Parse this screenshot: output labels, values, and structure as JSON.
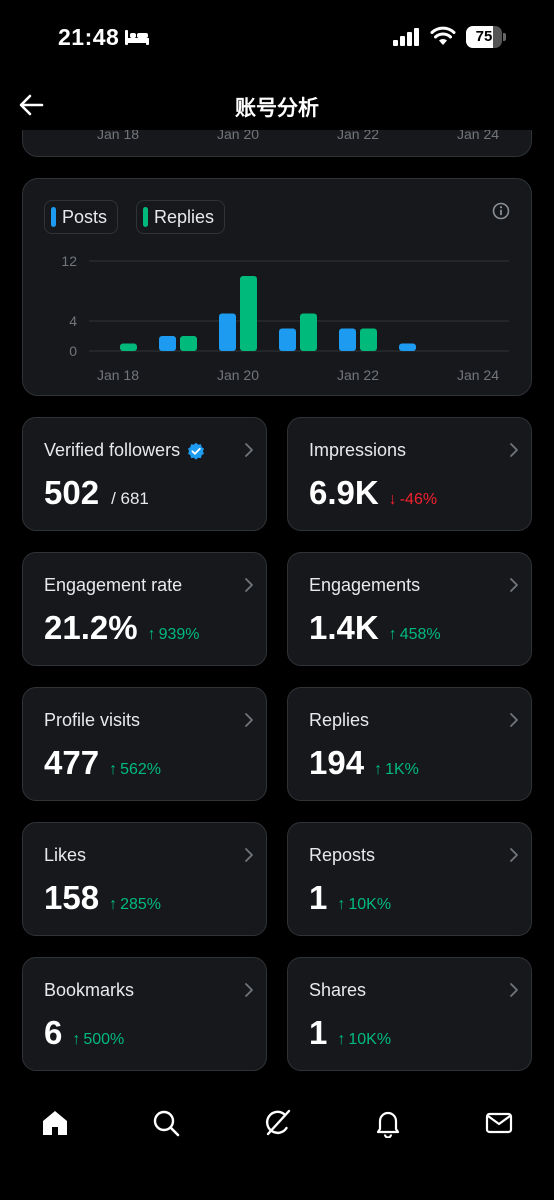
{
  "status_bar": {
    "time": "21:48",
    "battery": "75",
    "battery_level": 0.75,
    "icons": [
      "bed-icon",
      "signal-icon",
      "wifi-icon",
      "battery-icon"
    ]
  },
  "header": {
    "title": "账号分析",
    "back_icon": "back-arrow-icon"
  },
  "top_card": {
    "ticks": [
      "Jan 18",
      "Jan 20",
      "Jan 22",
      "Jan 24"
    ]
  },
  "chart_data": {
    "type": "bar",
    "legend": [
      {
        "name": "Posts",
        "color": "#1d9bf0"
      },
      {
        "name": "Replies",
        "color": "#00ba7c"
      }
    ],
    "categories": [
      "Jan 18",
      "Jan 19",
      "Jan 20",
      "Jan 21",
      "Jan 22",
      "Jan 23",
      "Jan 24"
    ],
    "series": [
      {
        "name": "Posts",
        "color": "#1d9bf0",
        "values": [
          0,
          2,
          5,
          3,
          3,
          1,
          0
        ]
      },
      {
        "name": "Replies",
        "color": "#00ba7c",
        "values": [
          1,
          2,
          10,
          5,
          3,
          0,
          0
        ]
      }
    ],
    "y_ticks": [
      "12",
      "4",
      "0"
    ],
    "y_tick_values": [
      12,
      4,
      0
    ],
    "x_tick_labels": [
      "Jan 18",
      "Jan 20",
      "Jan 22",
      "Jan 24"
    ],
    "ylim": [
      0,
      12
    ],
    "grid": true,
    "legend_placement": "top-left"
  },
  "stats": [
    {
      "label": "Verified followers",
      "value": "502",
      "sub": "/ 681",
      "change": "",
      "direction": "",
      "verified": true
    },
    {
      "label": "Impressions",
      "value": "6.9K",
      "sub": "",
      "change": "-46%",
      "direction": "down",
      "verified": false
    },
    {
      "label": "Engagement rate",
      "value": "21.2%",
      "sub": "",
      "change": "939%",
      "direction": "up",
      "verified": false
    },
    {
      "label": "Engagements",
      "value": "1.4K",
      "sub": "",
      "change": "458%",
      "direction": "up",
      "verified": false
    },
    {
      "label": "Profile visits",
      "value": "477",
      "sub": "",
      "change": "562%",
      "direction": "up",
      "verified": false
    },
    {
      "label": "Replies",
      "value": "194",
      "sub": "",
      "change": "1K%",
      "direction": "up",
      "verified": false
    },
    {
      "label": "Likes",
      "value": "158",
      "sub": "",
      "change": "285%",
      "direction": "up",
      "verified": false
    },
    {
      "label": "Reposts",
      "value": "1",
      "sub": "",
      "change": "10K%",
      "direction": "up",
      "verified": false
    },
    {
      "label": "Bookmarks",
      "value": "6",
      "sub": "",
      "change": "500%",
      "direction": "up",
      "verified": false
    },
    {
      "label": "Shares",
      "value": "1",
      "sub": "",
      "change": "10K%",
      "direction": "up",
      "verified": false
    }
  ],
  "arrows": {
    "up": "↑",
    "down": "↓"
  },
  "bottom_nav": [
    "home-icon",
    "search-icon",
    "grok-icon",
    "notifications-icon",
    "messages-icon"
  ],
  "colors": {
    "posts": "#1d9bf0",
    "replies": "#00ba7c",
    "up": "#00ba7c",
    "down": "#f4212e",
    "card_bg": "#16181c",
    "border": "#2f3336"
  }
}
